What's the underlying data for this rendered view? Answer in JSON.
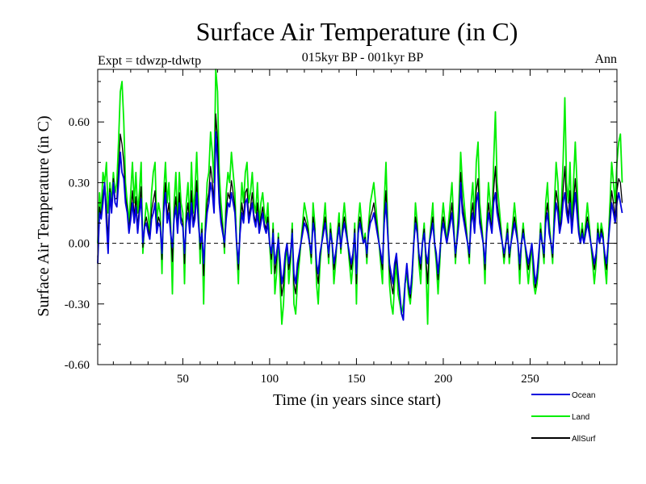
{
  "chart_data": {
    "type": "line",
    "title": "Surface Air Temperature (in C)",
    "subtitle": "015kyr BP - 001kyr BP",
    "experiment_label": "Expt = tdwzp-tdwtp",
    "season_label": "Ann",
    "xlabel": "Time (in years since start)",
    "ylabel": "Surface Air Temperature (in C)",
    "xlim": [
      1,
      300
    ],
    "ylim": [
      -0.6,
      0.86
    ],
    "x_ticks": [
      50,
      100,
      150,
      200,
      250
    ],
    "y_ticks": [
      -0.6,
      -0.3,
      0.0,
      0.3,
      0.6
    ],
    "y_tick_labels": [
      "-0.60",
      "-0.30",
      "0.00",
      "0.30",
      "0.60"
    ],
    "zero_line": true,
    "legend_position": "bottom-right",
    "series": [
      {
        "name": "Ocean",
        "color": "#0000dd",
        "values": [
          -0.1,
          0.15,
          0.12,
          0.2,
          0.3,
          0.1,
          -0.05,
          0.25,
          0.15,
          0.3,
          0.2,
          0.18,
          0.3,
          0.45,
          0.35,
          0.32,
          0.2,
          0.15,
          0.05,
          0.12,
          0.2,
          0.1,
          0.18,
          0.05,
          0.15,
          0.22,
          0.0,
          0.08,
          0.1,
          0.05,
          0.02,
          0.12,
          0.15,
          0.2,
          0.05,
          0.1,
          0.08,
          -0.05,
          0.15,
          0.25,
          0.1,
          0.15,
          0.05,
          -0.02,
          0.12,
          0.18,
          0.05,
          0.2,
          0.1,
          0.08,
          -0.05,
          0.1,
          0.15,
          0.05,
          0.2,
          0.08,
          0.12,
          0.25,
          0.1,
          0.0,
          0.05,
          -0.1,
          0.05,
          0.15,
          0.2,
          0.3,
          0.25,
          0.15,
          0.55,
          0.4,
          0.2,
          0.1,
          0.05,
          0.0,
          0.12,
          0.2,
          0.18,
          0.25,
          0.2,
          0.15,
          0.0,
          -0.1,
          0.05,
          0.15,
          0.1,
          0.2,
          0.22,
          0.1,
          0.15,
          0.2,
          0.12,
          0.08,
          0.15,
          0.05,
          0.1,
          0.15,
          0.08,
          0.05,
          0.1,
          0.0,
          -0.05,
          0.05,
          -0.1,
          -0.05,
          0.02,
          -0.08,
          -0.2,
          -0.15,
          -0.05,
          0.0,
          -0.1,
          -0.05,
          0.05,
          -0.15,
          -0.2,
          -0.1,
          -0.05,
          0.0,
          0.05,
          0.1,
          0.08,
          0.05,
          0.0,
          -0.05,
          0.1,
          0.05,
          -0.1,
          -0.15,
          -0.05,
          0.0,
          0.05,
          0.1,
          0.02,
          -0.05,
          0.05,
          0.0,
          -0.1,
          -0.05,
          0.02,
          0.08,
          -0.02,
          0.05,
          0.1,
          0.05,
          0.0,
          -0.05,
          -0.1,
          -0.05,
          0.05,
          -0.15,
          0.05,
          0.1,
          0.05,
          0.0,
          0.02,
          -0.05,
          0.05,
          0.1,
          0.12,
          0.15,
          0.1,
          0.05,
          0.0,
          -0.05,
          -0.1,
          0.1,
          0.2,
          0.05,
          -0.1,
          -0.15,
          -0.2,
          -0.1,
          -0.05,
          -0.15,
          -0.25,
          -0.35,
          -0.38,
          -0.2,
          -0.1,
          -0.2,
          -0.25,
          -0.15,
          0.0,
          0.1,
          0.05,
          -0.05,
          -0.1,
          0.0,
          0.05,
          -0.05,
          -0.1,
          0.0,
          0.05,
          0.1,
          0.0,
          -0.05,
          -0.15,
          -0.05,
          0.05,
          0.1,
          0.05,
          0.0,
          0.05,
          0.1,
          0.15,
          0.05,
          -0.05,
          0.02,
          0.1,
          0.3,
          0.15,
          0.1,
          0.05,
          0.0,
          -0.05,
          0.1,
          0.15,
          0.05,
          0.2,
          0.25,
          0.1,
          0.05,
          0.0,
          -0.1,
          0.05,
          0.15,
          0.1,
          0.05,
          0.2,
          0.25,
          0.15,
          0.1,
          0.05,
          0.0,
          -0.05,
          0.0,
          0.05,
          -0.05,
          0.0,
          0.05,
          0.1,
          0.05,
          0.0,
          -0.1,
          0.0,
          0.05,
          0.0,
          -0.05,
          -0.1,
          -0.05,
          0.0,
          -0.1,
          -0.2,
          -0.15,
          -0.05,
          0.05,
          0.0,
          -0.05,
          0.1,
          0.15,
          0.05,
          0.0,
          -0.05,
          0.1,
          0.2,
          0.15,
          0.05,
          0.1,
          0.2,
          0.25,
          0.15,
          0.1,
          0.2,
          0.05,
          0.15,
          0.25,
          0.15,
          0.05,
          0.0,
          0.05,
          0.0,
          0.05,
          0.1,
          0.05,
          0.0,
          -0.05,
          -0.1,
          -0.05,
          0.05,
          0.0,
          0.05,
          0.02,
          -0.05,
          -0.1,
          0.0,
          0.1,
          0.2,
          0.15,
          0.1,
          0.2,
          0.25,
          0.2,
          0.15
        ]
      },
      {
        "name": "Land",
        "color": "#00ee00",
        "values": [
          0.0,
          0.25,
          0.15,
          0.35,
          0.3,
          0.4,
          0.15,
          0.3,
          0.2,
          0.35,
          0.25,
          0.3,
          0.5,
          0.75,
          0.8,
          0.6,
          0.3,
          0.2,
          0.1,
          0.25,
          0.4,
          0.2,
          0.35,
          0.15,
          0.25,
          0.4,
          -0.05,
          0.1,
          0.2,
          0.15,
          0.05,
          0.25,
          0.35,
          0.4,
          0.1,
          0.2,
          0.15,
          -0.15,
          0.25,
          0.4,
          0.2,
          0.3,
          0.1,
          -0.25,
          0.2,
          0.35,
          0.1,
          0.35,
          0.2,
          0.15,
          -0.2,
          0.2,
          0.3,
          0.1,
          0.4,
          0.15,
          0.25,
          0.45,
          0.2,
          -0.1,
          0.1,
          -0.3,
          0.1,
          0.3,
          0.35,
          0.55,
          0.45,
          0.3,
          0.86,
          0.75,
          0.35,
          0.2,
          0.1,
          -0.05,
          0.25,
          0.35,
          0.3,
          0.45,
          0.35,
          0.25,
          0.0,
          -0.2,
          0.1,
          0.3,
          0.2,
          0.35,
          0.4,
          0.2,
          0.25,
          0.35,
          0.2,
          0.15,
          0.3,
          0.1,
          0.2,
          0.25,
          0.15,
          0.1,
          0.2,
          0.0,
          -0.15,
          0.1,
          -0.25,
          -0.15,
          0.05,
          -0.2,
          -0.4,
          -0.3,
          -0.1,
          0.0,
          -0.2,
          -0.1,
          0.1,
          -0.3,
          -0.35,
          -0.2,
          -0.1,
          0.0,
          0.1,
          0.2,
          0.15,
          0.1,
          0.0,
          -0.1,
          0.2,
          0.1,
          -0.2,
          -0.3,
          -0.1,
          0.0,
          0.1,
          0.2,
          0.05,
          -0.1,
          0.1,
          0.0,
          -0.2,
          -0.1,
          0.05,
          0.15,
          -0.05,
          0.1,
          0.2,
          0.1,
          0.0,
          -0.1,
          -0.2,
          -0.1,
          0.1,
          -0.3,
          0.1,
          0.2,
          0.1,
          0.0,
          0.05,
          -0.1,
          0.1,
          0.2,
          0.25,
          0.3,
          0.2,
          0.1,
          0.0,
          -0.1,
          -0.2,
          0.2,
          0.4,
          0.1,
          -0.2,
          -0.3,
          -0.35,
          -0.2,
          -0.1,
          -0.25,
          -0.3,
          -0.35,
          -0.3,
          -0.2,
          -0.15,
          -0.25,
          -0.3,
          -0.2,
          0.0,
          0.2,
          0.1,
          -0.1,
          -0.2,
          0.0,
          0.1,
          -0.1,
          -0.4,
          0.0,
          0.1,
          0.2,
          0.0,
          -0.1,
          -0.25,
          -0.1,
          0.1,
          0.2,
          0.1,
          0.0,
          0.1,
          0.2,
          0.3,
          0.1,
          -0.1,
          0.05,
          0.2,
          0.45,
          0.3,
          0.2,
          0.1,
          0.0,
          -0.1,
          0.2,
          0.3,
          0.1,
          0.4,
          0.5,
          0.2,
          0.1,
          0.0,
          -0.2,
          0.1,
          0.3,
          0.2,
          0.1,
          0.4,
          0.65,
          0.3,
          0.2,
          0.1,
          0.0,
          -0.1,
          0.0,
          0.1,
          -0.1,
          0.0,
          0.1,
          0.2,
          0.1,
          0.0,
          -0.2,
          0.0,
          0.1,
          0.0,
          -0.1,
          -0.2,
          -0.1,
          0.0,
          -0.2,
          -0.25,
          -0.2,
          -0.1,
          0.1,
          0.0,
          -0.1,
          0.2,
          0.3,
          0.1,
          0.0,
          -0.1,
          0.2,
          0.4,
          0.3,
          0.1,
          0.2,
          0.4,
          0.72,
          0.3,
          0.2,
          0.4,
          0.1,
          0.3,
          0.5,
          0.3,
          0.1,
          0.0,
          0.1,
          0.0,
          0.1,
          0.2,
          0.1,
          0.0,
          -0.1,
          -0.2,
          -0.1,
          0.1,
          0.0,
          0.1,
          0.05,
          -0.1,
          -0.2,
          0.0,
          0.2,
          0.4,
          0.3,
          0.2,
          0.4,
          0.5,
          0.54,
          0.3
        ]
      },
      {
        "name": "AllSurf",
        "color": "#000000",
        "values": [
          -0.07,
          0.18,
          0.13,
          0.24,
          0.3,
          0.19,
          0.01,
          0.27,
          0.17,
          0.32,
          0.22,
          0.22,
          0.36,
          0.54,
          0.49,
          0.4,
          0.23,
          0.17,
          0.07,
          0.16,
          0.26,
          0.13,
          0.23,
          0.08,
          0.18,
          0.28,
          -0.02,
          0.09,
          0.13,
          0.08,
          0.03,
          0.16,
          0.21,
          0.26,
          0.07,
          0.13,
          0.1,
          -0.08,
          0.18,
          0.3,
          0.13,
          0.2,
          0.07,
          -0.09,
          0.14,
          0.23,
          0.07,
          0.25,
          0.13,
          0.1,
          -0.1,
          0.13,
          0.2,
          0.07,
          0.26,
          0.1,
          0.16,
          0.31,
          0.13,
          -0.03,
          0.07,
          -0.16,
          0.07,
          0.2,
          0.25,
          0.38,
          0.31,
          0.2,
          0.64,
          0.51,
          0.25,
          0.13,
          0.07,
          -0.02,
          0.16,
          0.25,
          0.22,
          0.31,
          0.25,
          0.18,
          0.0,
          -0.13,
          0.07,
          0.2,
          0.13,
          0.25,
          0.27,
          0.13,
          0.18,
          0.25,
          0.14,
          0.1,
          0.2,
          0.07,
          0.13,
          0.18,
          0.1,
          0.07,
          0.13,
          0.0,
          -0.08,
          0.07,
          -0.15,
          -0.08,
          0.03,
          -0.12,
          -0.26,
          -0.2,
          -0.07,
          0.0,
          -0.13,
          -0.07,
          0.07,
          -0.2,
          -0.25,
          -0.13,
          -0.07,
          0.0,
          0.07,
          0.13,
          0.1,
          0.07,
          0.0,
          -0.07,
          0.13,
          0.07,
          -0.13,
          -0.2,
          -0.07,
          0.0,
          0.07,
          0.13,
          0.03,
          -0.07,
          0.07,
          0.0,
          -0.13,
          -0.07,
          0.03,
          0.1,
          -0.03,
          0.07,
          0.13,
          0.07,
          0.0,
          -0.07,
          -0.13,
          -0.07,
          0.07,
          -0.2,
          0.07,
          0.13,
          0.07,
          0.0,
          0.03,
          -0.07,
          0.07,
          0.13,
          0.16,
          0.2,
          0.13,
          0.07,
          0.0,
          -0.07,
          -0.13,
          0.13,
          0.26,
          0.07,
          -0.13,
          -0.2,
          -0.25,
          -0.13,
          -0.07,
          -0.18,
          -0.27,
          -0.35,
          -0.36,
          -0.2,
          -0.12,
          -0.22,
          -0.27,
          -0.17,
          0.0,
          0.13,
          0.07,
          -0.07,
          -0.13,
          0.0,
          0.07,
          -0.07,
          -0.2,
          0.0,
          0.07,
          0.13,
          0.0,
          -0.07,
          -0.18,
          -0.07,
          0.07,
          0.13,
          0.07,
          0.0,
          0.07,
          0.13,
          0.2,
          0.07,
          -0.07,
          0.03,
          0.13,
          0.35,
          0.2,
          0.13,
          0.07,
          0.0,
          -0.07,
          0.13,
          0.2,
          0.07,
          0.26,
          0.32,
          0.13,
          0.07,
          0.0,
          -0.13,
          0.07,
          0.2,
          0.13,
          0.07,
          0.26,
          0.38,
          0.2,
          0.13,
          0.07,
          0.0,
          -0.07,
          0.0,
          0.07,
          -0.07,
          0.0,
          0.07,
          0.13,
          0.07,
          0.0,
          -0.13,
          0.0,
          0.07,
          0.0,
          -0.07,
          -0.13,
          -0.07,
          0.0,
          -0.13,
          -0.22,
          -0.17,
          -0.07,
          0.07,
          0.0,
          -0.07,
          0.13,
          0.2,
          0.07,
          0.0,
          -0.07,
          0.13,
          0.26,
          0.2,
          0.07,
          0.13,
          0.26,
          0.38,
          0.2,
          0.13,
          0.26,
          0.07,
          0.2,
          0.32,
          0.2,
          0.07,
          0.0,
          0.07,
          0.0,
          0.07,
          0.13,
          0.07,
          0.0,
          -0.07,
          -0.13,
          -0.07,
          0.07,
          0.0,
          0.07,
          0.03,
          -0.07,
          -0.13,
          0.0,
          0.13,
          0.26,
          0.2,
          0.13,
          0.26,
          0.32,
          0.3,
          0.2
        ]
      }
    ]
  }
}
